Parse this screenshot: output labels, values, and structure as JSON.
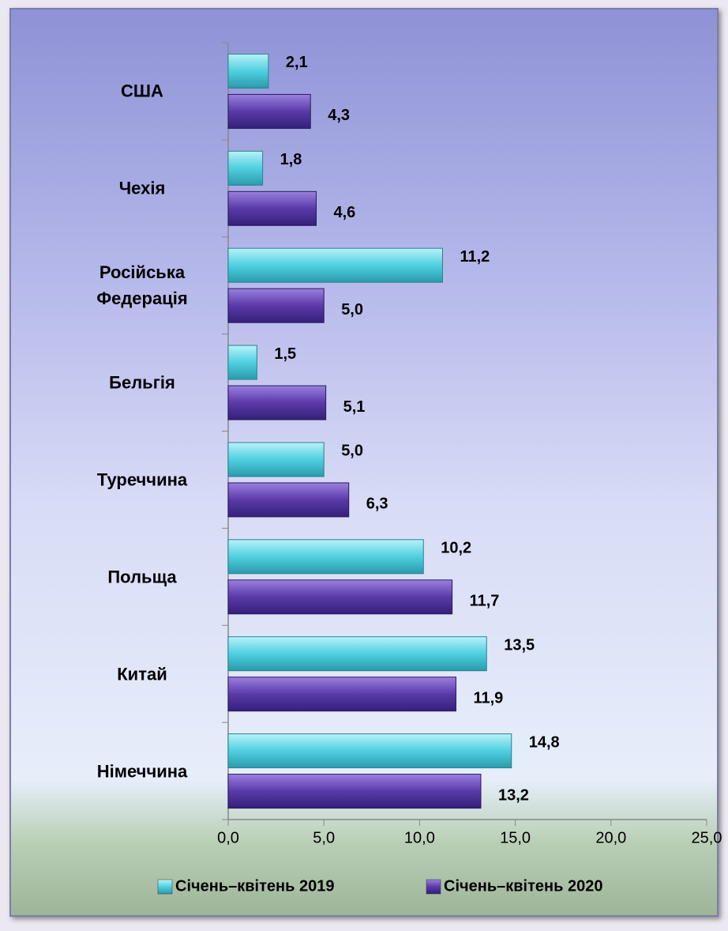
{
  "chart_data": {
    "type": "bar",
    "orientation": "horizontal",
    "categories": [
      "США",
      "Чехія",
      "Російська Федерація",
      "Бельгія",
      "Туреччина",
      "Польща",
      "Китай",
      "Німеччина"
    ],
    "series": [
      {
        "name": "Січень–квітень 2019",
        "color": "#4fd0e0",
        "values": [
          2.1,
          1.8,
          11.2,
          1.5,
          5.0,
          10.2,
          13.5,
          14.8
        ],
        "value_labels": [
          "2,1",
          "1,8",
          "11,2",
          "1,5",
          "5,0",
          "10,2",
          "13,5",
          "14,8"
        ]
      },
      {
        "name": "Січень–квітень 2020",
        "color": "#5a3aa8",
        "values": [
          4.3,
          4.6,
          5.0,
          5.1,
          6.3,
          11.7,
          11.9,
          13.2
        ],
        "value_labels": [
          "4,3",
          "4,6",
          "5,0",
          "5,1",
          "6,3",
          "11,7",
          "11,9",
          "13,2"
        ]
      }
    ],
    "xlim": [
      0,
      25
    ],
    "xticks": [
      {
        "value": 0,
        "label": "0,0"
      },
      {
        "value": 5,
        "label": "5,0"
      },
      {
        "value": 10,
        "label": "10,0"
      },
      {
        "value": 15,
        "label": "15,0"
      },
      {
        "value": 20,
        "label": "20,0"
      },
      {
        "value": 25,
        "label": "25,0"
      }
    ],
    "legend": "bottom"
  }
}
